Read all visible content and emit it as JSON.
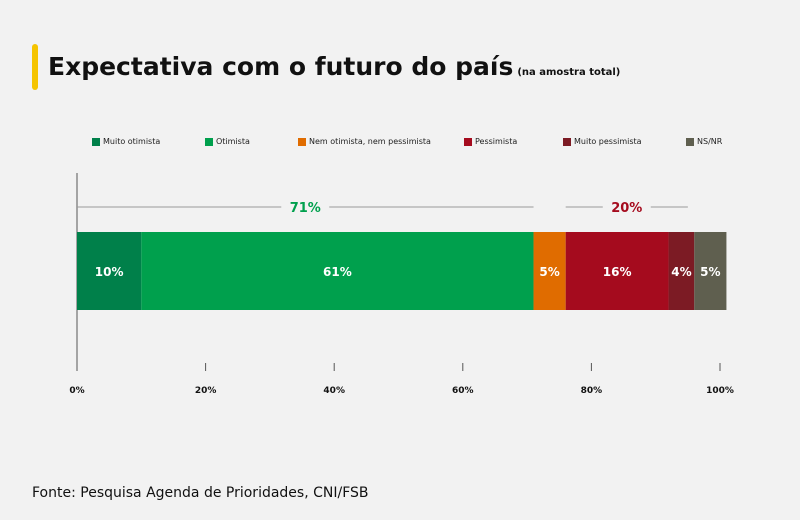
{
  "header": {
    "title": "Expectativa com o futuro do país",
    "subtitle": "(na amostra total)"
  },
  "footer": {
    "source": "Fonte: Pesquisa Agenda de Prioridades, CNI/FSB"
  },
  "chart_data": {
    "type": "bar",
    "orientation": "horizontal-stacked-100",
    "title": "Expectativa com o futuro do país",
    "subtitle": "(na amostra total)",
    "xlim": [
      0,
      100
    ],
    "x_ticks": [
      "0%",
      "20%",
      "40%",
      "60%",
      "80%",
      "100%"
    ],
    "x_tick_values": [
      0,
      20,
      40,
      60,
      80,
      100
    ],
    "legend_position": "top",
    "series": [
      {
        "name": "Muito otimista",
        "value": 10,
        "label": "10%",
        "color": "#00804a"
      },
      {
        "name": "Otimista",
        "value": 61,
        "label": "61%",
        "color": "#00a04d"
      },
      {
        "name": "Nem otimista, nem pessimista",
        "value": 5,
        "label": "5%",
        "color": "#e06c00"
      },
      {
        "name": "Pessimista",
        "value": 16,
        "label": "16%",
        "color": "#a50b1e"
      },
      {
        "name": "Muito pessimista",
        "value": 4,
        "label": "4%",
        "color": "#7c1b24"
      },
      {
        "name": "NS/NR",
        "value": 5,
        "label": "5%",
        "color": "#5f5f4f"
      }
    ],
    "annotations": [
      {
        "label": "71%",
        "from": 0,
        "to": 71,
        "color": "#00a04d"
      },
      {
        "label": "20%",
        "from": 76,
        "to": 95,
        "color": "#a50b1e"
      }
    ]
  }
}
